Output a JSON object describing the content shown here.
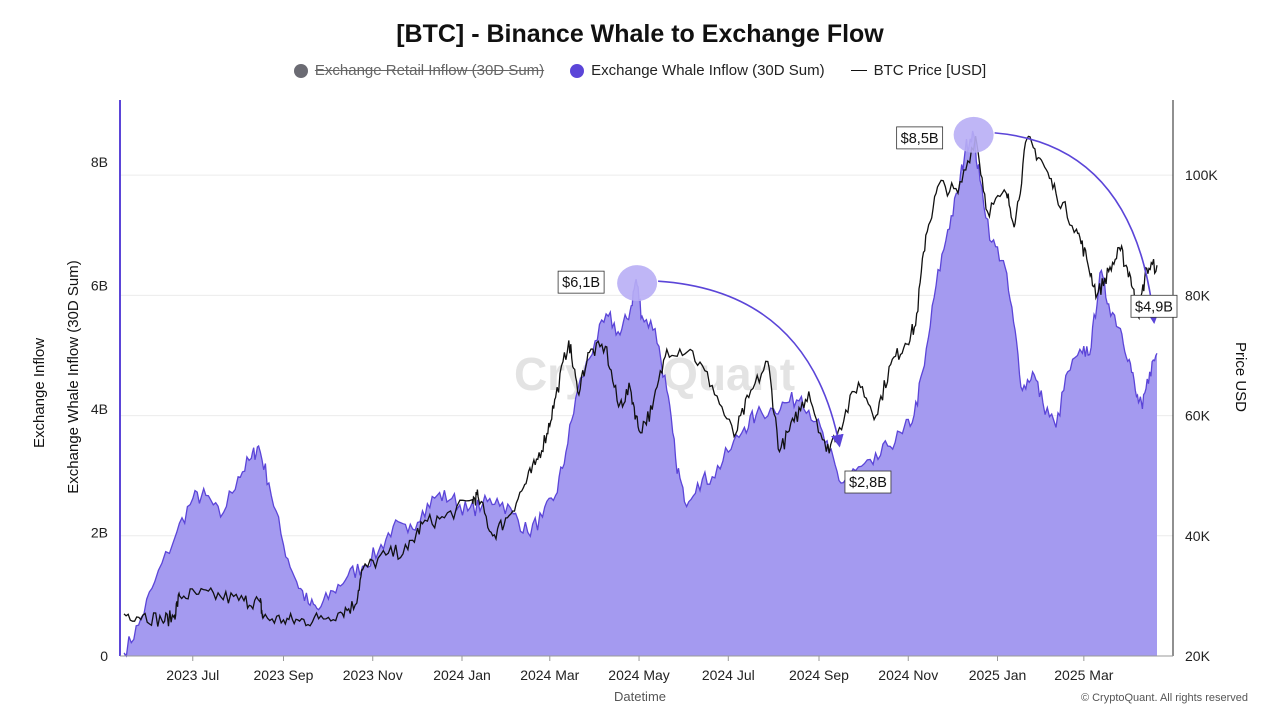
{
  "colors": {
    "whale_fill": "#a49af0",
    "whale_line": "#5b45d8",
    "retail_dot": "#6b6b73",
    "price_line": "#111111",
    "highlight": "#b8aef5",
    "arrow": "#5b45d8",
    "watermark": "#e3e3e3"
  },
  "legend": {
    "retail": "Exchange Retail Inflow (30D Sum)",
    "whale": "Exchange Whale Inflow (30D Sum)",
    "price": "BTC Price [USD]"
  },
  "watermark": "CryptoQuant",
  "footer": "© CryptoQuant. All rights reserved",
  "chart_data": {
    "type": "area",
    "title": "[BTC] - Binance Whale to Exchange Flow",
    "xlabel": "Datetime",
    "ylabel_left_outer": "Exchange Inflow",
    "ylabel_left": "Exchange Whale Inflow (30D Sum)",
    "ylabel_right": "Price USD",
    "x_ticks": [
      "2023 Jul",
      "2023 Sep",
      "2023 Nov",
      "2024 Jan",
      "2024 Mar",
      "2024 May",
      "2024 Jul",
      "2024 Sep",
      "2024 Nov",
      "2025 Jan",
      "2025 Mar"
    ],
    "y_left_ticks": [
      "0",
      "2B",
      "4B",
      "6B",
      "8B"
    ],
    "y_left_range": [
      0,
      9000000000
    ],
    "y_right_ticks": [
      "20K",
      "40K",
      "60K",
      "80K",
      "100K"
    ],
    "y_right_range": [
      20000,
      112500
    ],
    "grid": true,
    "legend_position": "top",
    "x_range": [
      "2023-05-15",
      "2025-04-20"
    ],
    "series": [
      {
        "name": "Exchange Whale Inflow (30D Sum)",
        "axis": "left",
        "points": [
          [
            "2023-05-15",
            0.05
          ],
          [
            "2023-05-25",
            0.5
          ],
          [
            "2023-06-05",
            1.2
          ],
          [
            "2023-06-20",
            2.0
          ],
          [
            "2023-07-01",
            2.55
          ],
          [
            "2023-07-10",
            2.6
          ],
          [
            "2023-07-20",
            2.25
          ],
          [
            "2023-08-01",
            2.9
          ],
          [
            "2023-08-10",
            3.2
          ],
          [
            "2023-08-15",
            3.4
          ],
          [
            "2023-08-22",
            2.8
          ],
          [
            "2023-09-01",
            1.8
          ],
          [
            "2023-09-10",
            1.2
          ],
          [
            "2023-09-18",
            0.85
          ],
          [
            "2023-09-25",
            0.75
          ],
          [
            "2023-10-05",
            1.05
          ],
          [
            "2023-10-15",
            1.3
          ],
          [
            "2023-10-25",
            1.45
          ],
          [
            "2023-11-05",
            1.7
          ],
          [
            "2023-11-15",
            2.1
          ],
          [
            "2023-11-25",
            2.0
          ],
          [
            "2023-12-05",
            2.35
          ],
          [
            "2023-12-15",
            2.6
          ],
          [
            "2023-12-25",
            2.55
          ],
          [
            "2024-01-05",
            2.35
          ],
          [
            "2024-01-15",
            2.45
          ],
          [
            "2024-01-25",
            2.55
          ],
          [
            "2024-02-05",
            2.3
          ],
          [
            "2024-02-15",
            2.0
          ],
          [
            "2024-02-25",
            2.25
          ],
          [
            "2024-03-05",
            2.6
          ],
          [
            "2024-03-12",
            3.3
          ],
          [
            "2024-03-20",
            4.3
          ],
          [
            "2024-04-01",
            5.1
          ],
          [
            "2024-04-10",
            5.5
          ],
          [
            "2024-04-18",
            5.2
          ],
          [
            "2024-04-25",
            5.6
          ],
          [
            "2024-04-29",
            6.1
          ],
          [
            "2024-05-03",
            5.5
          ],
          [
            "2024-05-12",
            5.3
          ],
          [
            "2024-05-20",
            4.3
          ],
          [
            "2024-05-26",
            3.2
          ],
          [
            "2024-06-01",
            2.5
          ],
          [
            "2024-06-10",
            2.8
          ],
          [
            "2024-06-20",
            2.9
          ],
          [
            "2024-07-01",
            3.3
          ],
          [
            "2024-07-12",
            3.7
          ],
          [
            "2024-07-20",
            3.9
          ],
          [
            "2024-08-01",
            4.0
          ],
          [
            "2024-08-10",
            4.1
          ],
          [
            "2024-08-20",
            4.2
          ],
          [
            "2024-08-30",
            3.8
          ],
          [
            "2024-09-08",
            3.3
          ],
          [
            "2024-09-16",
            2.8
          ],
          [
            "2024-09-26",
            3.0
          ],
          [
            "2024-10-08",
            3.1
          ],
          [
            "2024-10-18",
            3.4
          ],
          [
            "2024-10-28",
            3.6
          ],
          [
            "2024-11-05",
            3.9
          ],
          [
            "2024-11-12",
            4.7
          ],
          [
            "2024-11-20",
            6.0
          ],
          [
            "2024-11-28",
            6.9
          ],
          [
            "2024-12-05",
            7.5
          ],
          [
            "2024-12-10",
            8.2
          ],
          [
            "2024-12-15",
            8.5
          ],
          [
            "2024-12-20",
            7.7
          ],
          [
            "2024-12-28",
            6.7
          ],
          [
            "2025-01-05",
            6.4
          ],
          [
            "2025-01-12",
            5.4
          ],
          [
            "2025-01-18",
            4.3
          ],
          [
            "2025-01-25",
            4.6
          ],
          [
            "2025-02-01",
            4.1
          ],
          [
            "2025-02-10",
            3.7
          ],
          [
            "2025-02-18",
            4.6
          ],
          [
            "2025-02-28",
            4.9
          ],
          [
            "2025-03-06",
            5.0
          ],
          [
            "2025-03-12",
            6.2
          ],
          [
            "2025-03-18",
            5.7
          ],
          [
            "2025-03-26",
            5.3
          ],
          [
            "2025-04-01",
            4.8
          ],
          [
            "2025-04-06",
            4.2
          ],
          [
            "2025-04-10",
            4.0
          ],
          [
            "2025-04-15",
            4.6
          ],
          [
            "2025-04-20",
            4.9
          ]
        ]
      },
      {
        "name": "BTC Price [USD]",
        "axis": "right",
        "points": [
          [
            "2023-05-15",
            27000
          ],
          [
            "2023-05-28",
            26800
          ],
          [
            "2023-06-10",
            25900
          ],
          [
            "2023-06-18",
            26500
          ],
          [
            "2023-06-22",
            30000
          ],
          [
            "2023-07-05",
            30300
          ],
          [
            "2023-07-20",
            29900
          ],
          [
            "2023-08-05",
            29200
          ],
          [
            "2023-08-16",
            29000
          ],
          [
            "2023-08-18",
            26300
          ],
          [
            "2023-09-01",
            26000
          ],
          [
            "2023-09-12",
            25800
          ],
          [
            "2023-09-25",
            26200
          ],
          [
            "2023-10-10",
            27300
          ],
          [
            "2023-10-20",
            28500
          ],
          [
            "2023-10-25",
            34300
          ],
          [
            "2023-11-10",
            36800
          ],
          [
            "2023-11-25",
            37700
          ],
          [
            "2023-12-05",
            42000
          ],
          [
            "2023-12-20",
            43000
          ],
          [
            "2024-01-08",
            46000
          ],
          [
            "2024-01-12",
            46500
          ],
          [
            "2024-01-22",
            40000
          ],
          [
            "2024-02-01",
            43000
          ],
          [
            "2024-02-12",
            48000
          ],
          [
            "2024-02-20",
            51800
          ],
          [
            "2024-02-28",
            57000
          ],
          [
            "2024-03-05",
            63000
          ],
          [
            "2024-03-14",
            72500
          ],
          [
            "2024-03-20",
            64000
          ],
          [
            "2024-03-28",
            70500
          ],
          [
            "2024-04-08",
            71500
          ],
          [
            "2024-04-17",
            61500
          ],
          [
            "2024-04-25",
            64500
          ],
          [
            "2024-05-01",
            57500
          ],
          [
            "2024-05-10",
            61000
          ],
          [
            "2024-05-20",
            71000
          ],
          [
            "2024-06-05",
            71000
          ],
          [
            "2024-06-20",
            65000
          ],
          [
            "2024-07-05",
            56500
          ],
          [
            "2024-07-15",
            63000
          ],
          [
            "2024-07-28",
            69000
          ],
          [
            "2024-08-05",
            54000
          ],
          [
            "2024-08-15",
            59000
          ],
          [
            "2024-08-25",
            64000
          ],
          [
            "2024-09-06",
            54000
          ],
          [
            "2024-09-15",
            58000
          ],
          [
            "2024-09-28",
            65500
          ],
          [
            "2024-10-10",
            60000
          ],
          [
            "2024-10-20",
            68500
          ],
          [
            "2024-10-30",
            72000
          ],
          [
            "2024-11-06",
            75000
          ],
          [
            "2024-11-13",
            90000
          ],
          [
            "2024-11-22",
            98500
          ],
          [
            "2024-12-05",
            97000
          ],
          [
            "2024-12-17",
            106500
          ],
          [
            "2024-12-25",
            94000
          ],
          [
            "2025-01-07",
            97000
          ],
          [
            "2025-01-13",
            92000
          ],
          [
            "2025-01-21",
            106000
          ],
          [
            "2025-01-31",
            102500
          ],
          [
            "2025-02-10",
            97000
          ],
          [
            "2025-02-24",
            91000
          ],
          [
            "2025-03-03",
            86000
          ],
          [
            "2025-03-10",
            80000
          ],
          [
            "2025-03-18",
            84000
          ],
          [
            "2025-03-26",
            87500
          ],
          [
            "2025-04-02",
            83000
          ],
          [
            "2025-04-07",
            76500
          ],
          [
            "2025-04-13",
            84500
          ],
          [
            "2025-04-20",
            85000
          ]
        ]
      }
    ],
    "annotations": [
      {
        "text": "$6,1B",
        "date": "2024-04-29",
        "value": 6.1,
        "arrow_to_date": "2024-09-15",
        "arrow_to_value": 3.4
      },
      {
        "text": "$2,8B",
        "date": "2024-09-16",
        "value": 2.8
      },
      {
        "text": "$8,5B",
        "date": "2024-12-15",
        "value": 8.5,
        "arrow_to_date": "2025-04-18",
        "arrow_to_value": 5.4
      },
      {
        "text": "$4,9B",
        "date": "2025-04-20",
        "value": 4.9
      }
    ]
  }
}
